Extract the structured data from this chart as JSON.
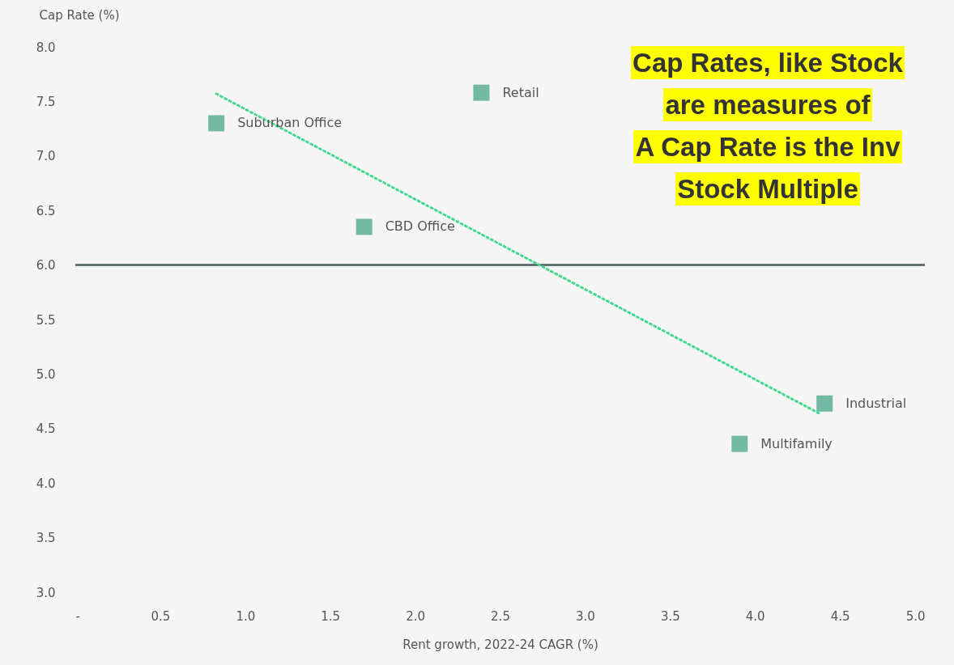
{
  "chart_data": {
    "type": "scatter",
    "xlabel": "Rent growth, 2022-24 CAGR (%)",
    "ylabel": "Cap Rate (%)",
    "xlim": [
      0,
      5
    ],
    "ylim": [
      3,
      8
    ],
    "xticks": [
      {
        "value": 0,
        "label": "-"
      },
      0.5,
      {
        "value": 1,
        "label": "1.0"
      },
      1.5,
      {
        "value": 2,
        "label": "2.0"
      },
      2.5,
      {
        "value": 3,
        "label": "3.0"
      },
      3.5,
      {
        "value": 4,
        "label": "4.0"
      },
      4.5,
      {
        "value": 5,
        "label": "5.0"
      }
    ],
    "yticks": [
      {
        "value": 3,
        "label": "3.0"
      },
      3.5,
      {
        "value": 4,
        "label": "4.0"
      },
      4.5,
      {
        "value": 5,
        "label": "5.0"
      },
      5.5,
      {
        "value": 6,
        "label": "6.0"
      },
      6.5,
      {
        "value": 7,
        "label": "7.0"
      },
      7.5,
      {
        "value": 8,
        "label": "8.0"
      }
    ],
    "grid": false,
    "marker": "square",
    "series": [
      {
        "color": "#74b9a4",
        "x": [
          0.83,
          2.39,
          1.7,
          4.41,
          3.91
        ],
        "values": [
          7.3,
          7.58,
          6.35,
          4.73,
          4.36
        ]
      },
      {
        "type": "line",
        "color": "#45d98f",
        "line_style": "dotted",
        "marker": "none",
        "x": [
          0.83,
          4.39
        ],
        "values": [
          7.57,
          4.63
        ]
      }
    ],
    "ref_lines": [
      {
        "axis": "y",
        "value": 6,
        "color": "#637373"
      }
    ],
    "annotations": [
      {
        "text": "Suburban Office",
        "x": 0.83,
        "y": 7.3
      },
      {
        "text": "Retail",
        "x": 2.39,
        "y": 7.58
      },
      {
        "text": "CBD Office",
        "x": 1.7,
        "y": 6.35
      },
      {
        "text": "Industrial",
        "x": 4.41,
        "y": 4.73
      },
      {
        "text": "Multifamily",
        "x": 3.91,
        "y": 4.36
      },
      "Cap Rates, like Stock",
      "are measures of",
      "A Cap Rate is the Inv",
      "Stock Multiple"
    ]
  }
}
